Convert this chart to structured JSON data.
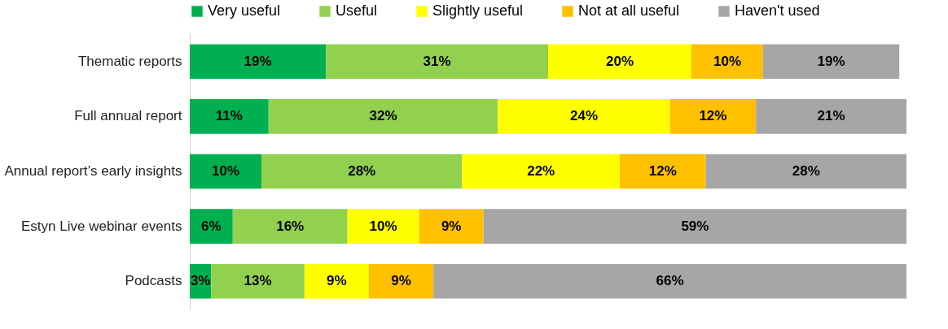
{
  "chart_data": {
    "type": "bar",
    "orientation": "horizontal",
    "stacked": true,
    "legend": "top",
    "grid": false,
    "categories": [
      "Thematic reports",
      "Full annual report",
      "Annual report’s early insights",
      "Estyn Live webinar events",
      "Podcasts"
    ],
    "series": [
      {
        "name": "Very useful",
        "color": "#00b050",
        "values": [
          19,
          11,
          10,
          6,
          3
        ],
        "value_labels": [
          "19%",
          "11%",
          "10%",
          "6%",
          "3%"
        ]
      },
      {
        "name": "Useful",
        "color": "#92d050",
        "values": [
          31,
          32,
          28,
          16,
          13
        ],
        "value_labels": [
          "31%",
          "32%",
          "28%",
          "16%",
          "13%"
        ]
      },
      {
        "name": "Slightly useful",
        "color": "#ffff00",
        "values": [
          20,
          24,
          22,
          10,
          9
        ],
        "value_labels": [
          "20%",
          "24%",
          "22%",
          "10%",
          "9%"
        ]
      },
      {
        "name": "Not at all useful",
        "color": "#ffc000",
        "values": [
          10,
          12,
          12,
          9,
          9
        ],
        "value_labels": [
          "10%",
          "12%",
          "12%",
          "9%",
          "9%"
        ]
      },
      {
        "name": "Haven't used",
        "color": "#a6a6a6",
        "values": [
          19,
          21,
          28,
          59,
          66
        ],
        "value_labels": [
          "19%",
          "21%",
          "28%",
          "59%",
          "66%"
        ]
      }
    ]
  }
}
